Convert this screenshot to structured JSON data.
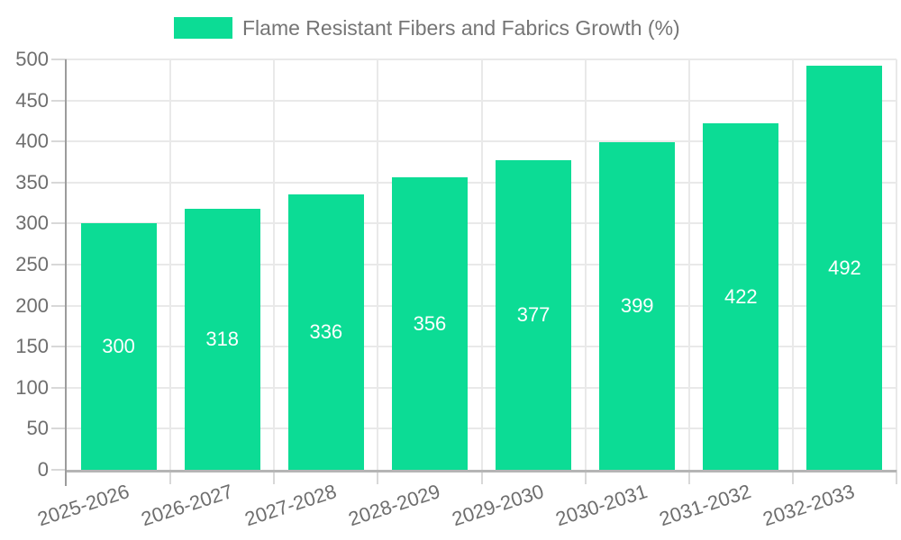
{
  "legend": {
    "label": "Flame Resistant Fibers and Fabrics Growth (%)"
  },
  "colors": {
    "bar": "#0cdc95",
    "bar_label_text": "#ffffff",
    "legend_text": "#757575",
    "axis_text": "#6e6e6e",
    "gridline": "#e9e9e9",
    "tick": "#d8d8d8",
    "y_axis_line": "#9c9c9c",
    "x_axis_line": "#b5b5b5",
    "background": "#ffffff"
  },
  "chart_data": {
    "type": "bar",
    "title": "Flame Resistant Fibers and Fabrics Growth (%)",
    "categories": [
      "2025-2026",
      "2026-2027",
      "2027-2028",
      "2028-2029",
      "2029-2030",
      "2030-2031",
      "2031-2032",
      "2032-2033"
    ],
    "values": [
      300,
      318,
      336,
      356,
      377,
      399,
      422,
      492
    ],
    "value_labels": [
      "300",
      "318",
      "336",
      "356",
      "377",
      "399",
      "422",
      "492"
    ],
    "yticks": [
      0,
      50,
      100,
      150,
      200,
      250,
      300,
      350,
      400,
      450,
      500
    ],
    "ylim": [
      0,
      500
    ],
    "xlabel": "",
    "ylabel": "",
    "grid": true,
    "legend_position": "top-center",
    "x_label_rotation_deg": -18
  }
}
